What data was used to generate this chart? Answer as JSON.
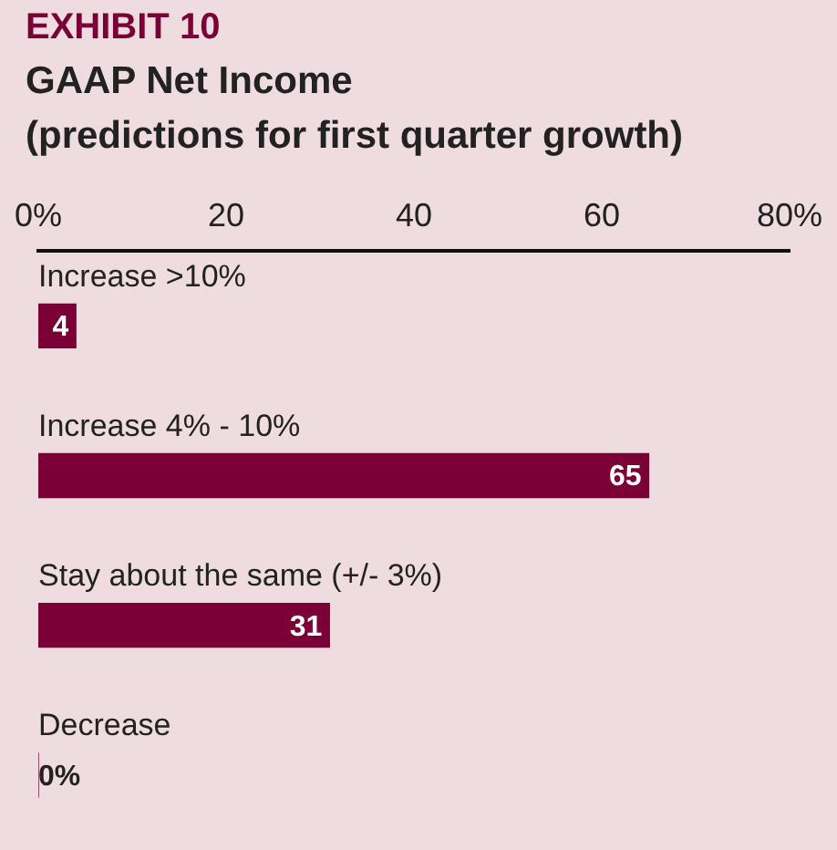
{
  "chart_data": {
    "type": "bar",
    "orientation": "horizontal",
    "subtitle": "EXHIBIT 10",
    "title": "GAAP Net Income\n(predictions for first quarter growth)",
    "categories": [
      "Increase >10%",
      "Increase 4% - 10%",
      "Stay about the same (+/- 3%)",
      "Decrease"
    ],
    "values": [
      4,
      65,
      31,
      0
    ],
    "color": "#7a0036",
    "value_labels": [
      "4",
      "65",
      "31",
      "0%"
    ],
    "xlim": [
      0,
      80
    ],
    "xticks": [
      {
        "value": 0,
        "label": "0%"
      },
      20,
      40,
      60,
      {
        "value": 80,
        "label": "80%"
      }
    ],
    "grid": false,
    "legend": false
  }
}
